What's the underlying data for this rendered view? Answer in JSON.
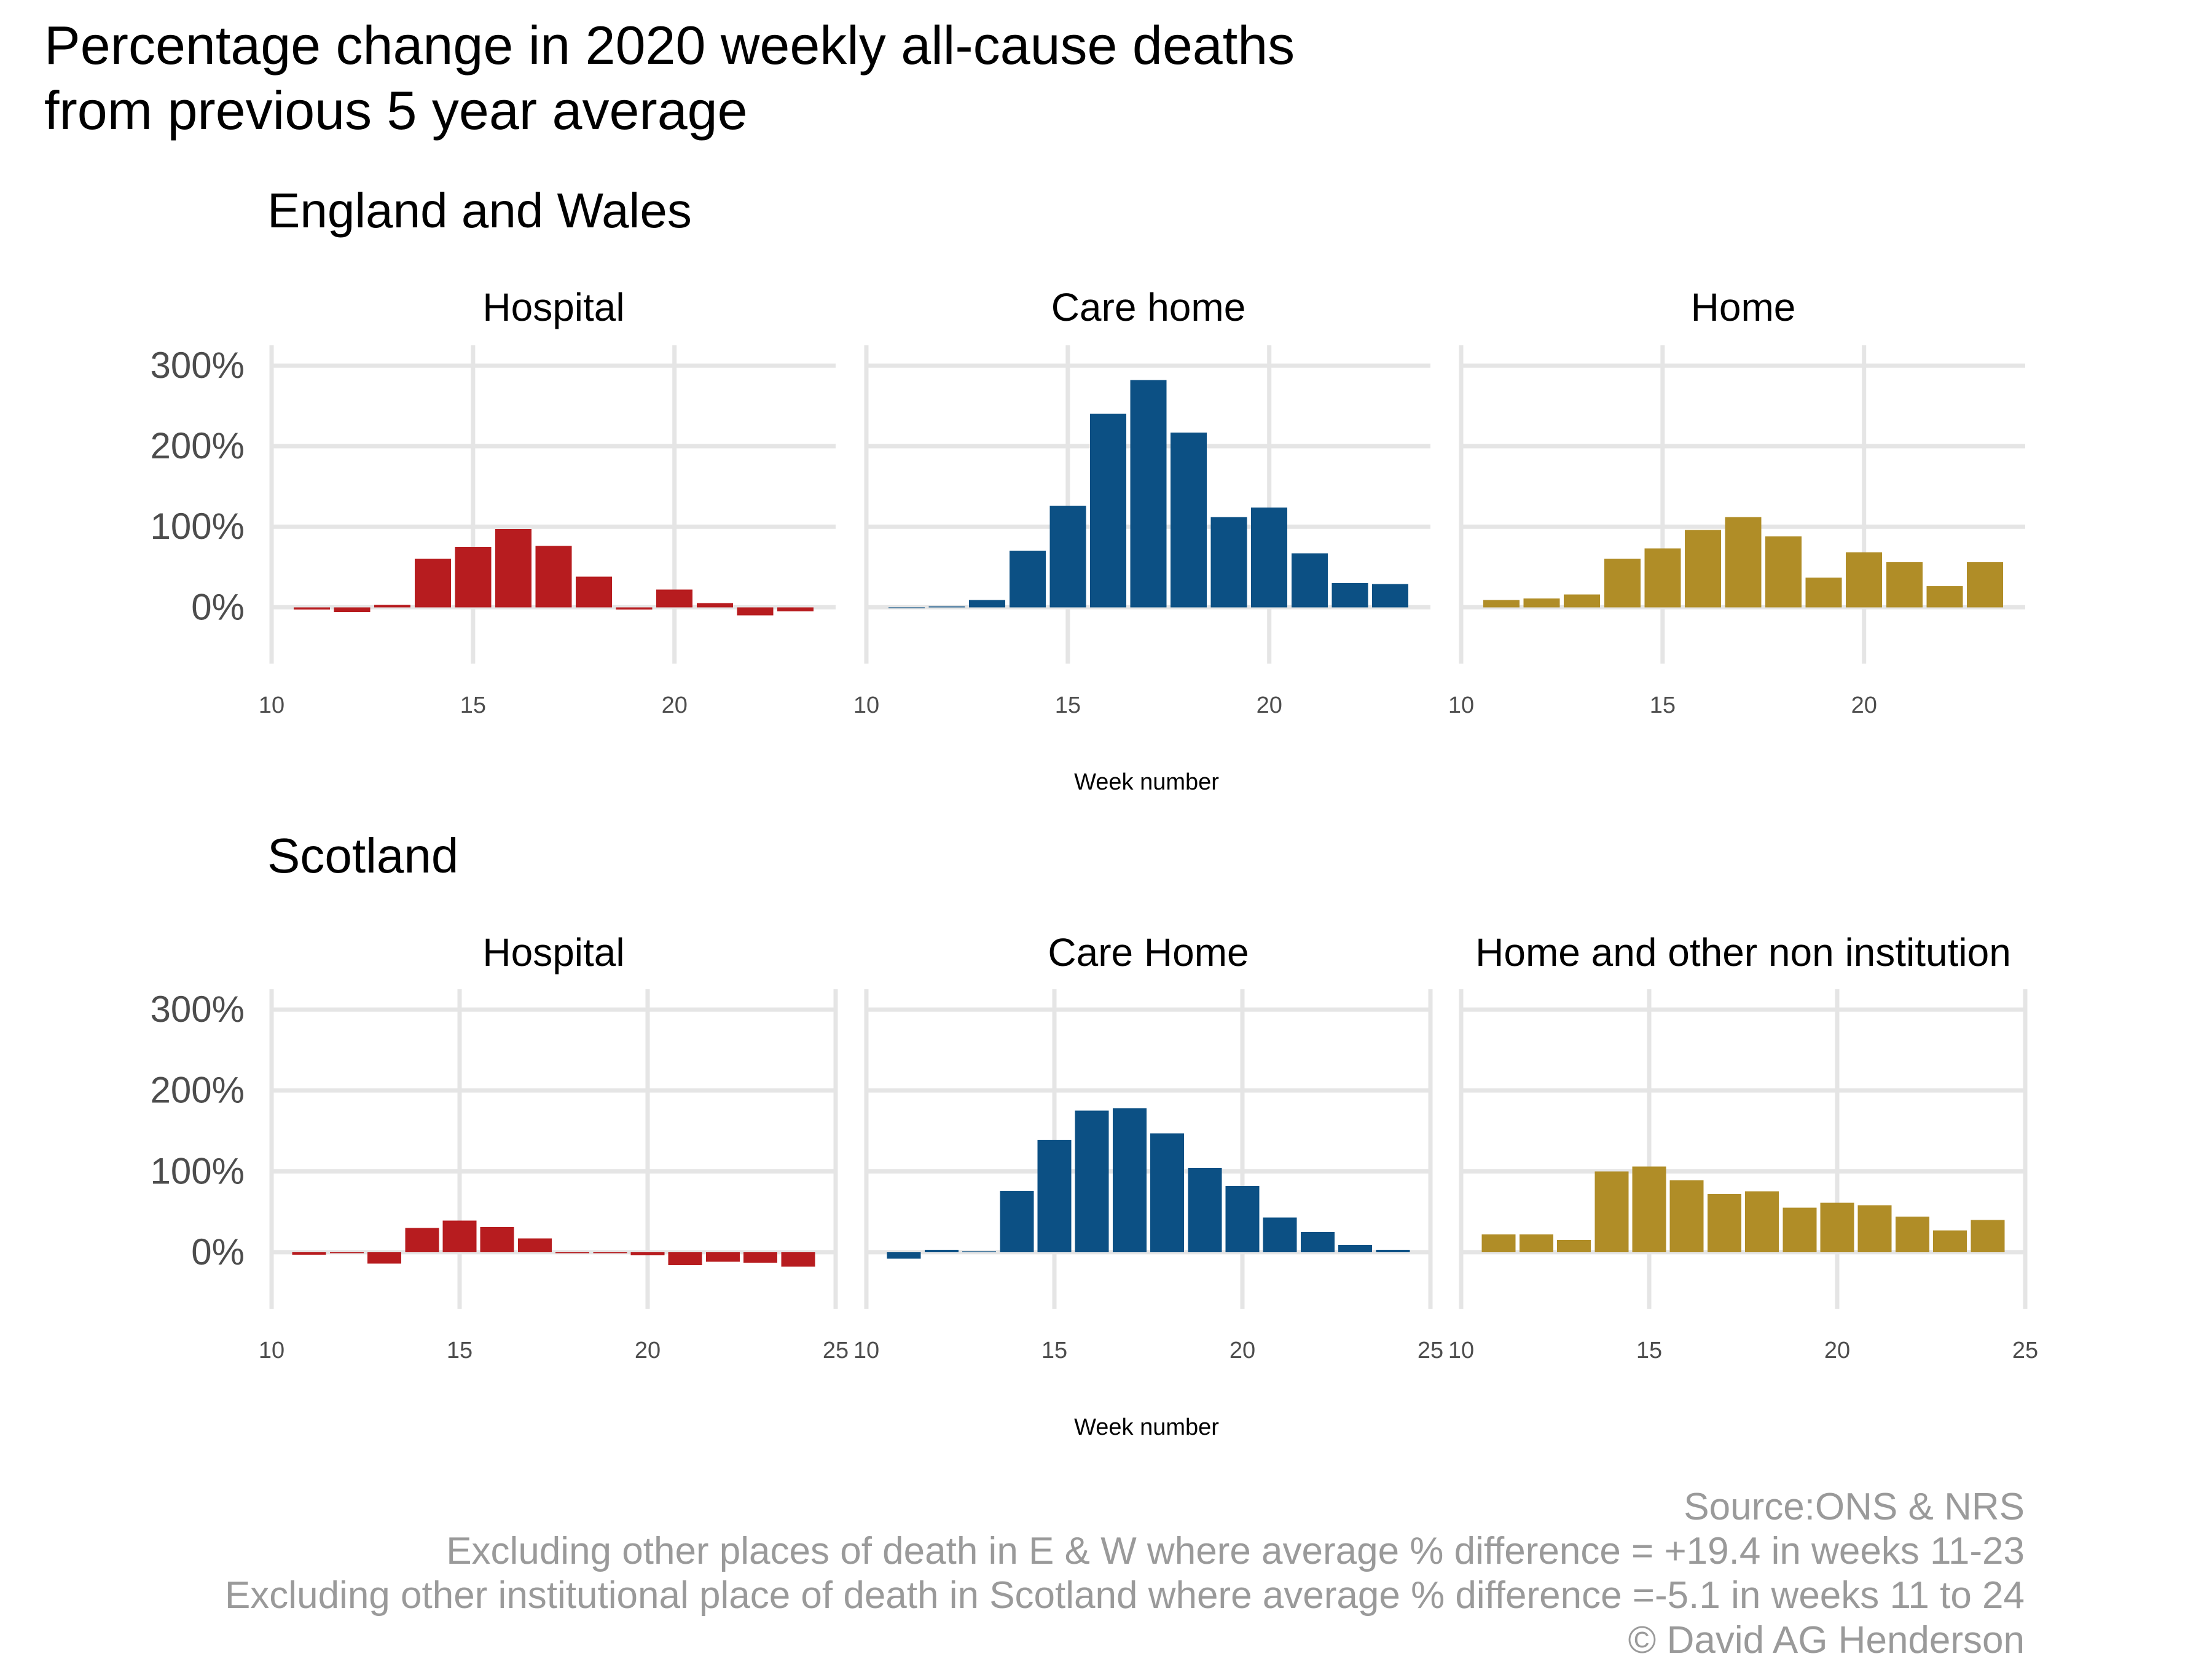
{
  "title_line1": "Percentage change in 2020 weekly all-cause deaths",
  "title_line2": "from previous 5 year average",
  "caption": [
    "Source:ONS & NRS",
    "Excluding other places of death in E & W where average % difference = +19.4 in weeks 11-23",
    "Excluding other institutional place of death in Scotland where average % difference =-5.1 in weeks 11 to 24",
    "© David AG Henderson"
  ],
  "colors": {
    "hospital": "#b71c1f",
    "care_home": "#0c5084",
    "home": "#b08d27"
  },
  "chart_data": [
    {
      "type": "bar",
      "section": "England and Wales",
      "xlabel": "Week number",
      "ylabel": "",
      "ylim": [
        -70,
        310
      ],
      "yticks": [
        "0%",
        "100%",
        "200%",
        "300%"
      ],
      "xlim": [
        10,
        24
      ],
      "xticks": [
        "10",
        "15",
        "20"
      ],
      "grid": true,
      "x": [
        11,
        12,
        13,
        14,
        15,
        16,
        17,
        18,
        19,
        20,
        21,
        22,
        23
      ],
      "series": [
        {
          "name": "Hospital",
          "color_key": "hospital",
          "values": [
            -3,
            -6,
            3,
            60,
            75,
            97,
            76,
            38,
            -3,
            22,
            5,
            -10,
            -5
          ]
        },
        {
          "name": "Care home",
          "color_key": "care_home",
          "values": [
            0,
            1,
            9,
            70,
            126,
            240,
            282,
            217,
            112,
            124,
            67,
            30,
            29
          ]
        },
        {
          "name": "Home",
          "color_key": "home",
          "values": [
            9,
            11,
            16,
            60,
            73,
            96,
            112,
            88,
            37,
            68,
            56,
            26,
            56
          ]
        }
      ]
    },
    {
      "type": "bar",
      "section": "Scotland",
      "xlabel": "Week number",
      "ylabel": "",
      "ylim": [
        -70,
        310
      ],
      "yticks": [
        "0%",
        "100%",
        "200%",
        "300%"
      ],
      "xlim": [
        10,
        25
      ],
      "xticks": [
        "10",
        "15",
        "20",
        "25"
      ],
      "grid": true,
      "x": [
        11,
        12,
        13,
        14,
        15,
        16,
        17,
        18,
        19,
        20,
        21,
        22,
        23,
        24
      ],
      "series": [
        {
          "name": "Hospital",
          "color_key": "hospital",
          "values": [
            -3,
            -1,
            -14,
            30,
            39,
            31,
            17,
            -1,
            -1,
            -4,
            -16,
            -12,
            -13,
            -18
          ]
        },
        {
          "name": "Care Home",
          "color_key": "care_home",
          "values": [
            -8,
            3,
            1,
            76,
            139,
            175,
            178,
            147,
            104,
            82,
            43,
            25,
            9,
            3
          ]
        },
        {
          "name": "Home and other non institution",
          "color_key": "home",
          "values": [
            22,
            22,
            15,
            100,
            106,
            89,
            72,
            75,
            55,
            61,
            58,
            44,
            27,
            40
          ]
        }
      ]
    }
  ]
}
